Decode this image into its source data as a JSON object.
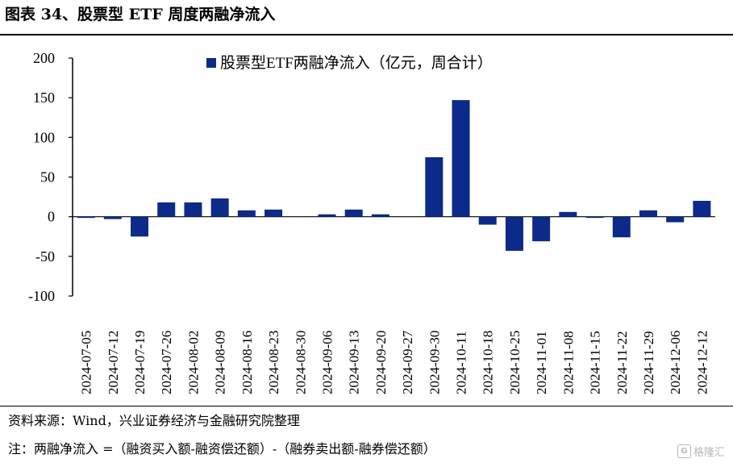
{
  "figure_title": "图表 34、股票型 ETF 周度两融净流入",
  "source_text": "资料来源：Wind，兴业证券经济与金融研究院整理",
  "note_text": "注：两融净流入 =（融资买入额-融资偿还额）-（融券卖出额-融券偿还额）",
  "watermark_text": "格隆汇",
  "colors": {
    "bar": "#0b2a8a"
  },
  "chart_data": {
    "type": "bar",
    "categories": [
      "2024-07-05",
      "2024-07-12",
      "2024-07-19",
      "2024-07-26",
      "2024-08-02",
      "2024-08-09",
      "2024-08-16",
      "2024-08-23",
      "2024-08-30",
      "2024-09-06",
      "2024-09-13",
      "2024-09-20",
      "2024-09-27",
      "2024-09-30",
      "2024-10-11",
      "2024-10-18",
      "2024-10-25",
      "2024-11-01",
      "2024-11-08",
      "2024-11-15",
      "2024-11-22",
      "2024-11-29",
      "2024-12-06",
      "2024-12-12"
    ],
    "series": [
      {
        "name": "股票型ETF两融净流入（亿元，周合计）",
        "values": [
          -1,
          -3,
          -25,
          18,
          18,
          23,
          8,
          9,
          0,
          3,
          9,
          3,
          0,
          75,
          147,
          -10,
          -43,
          -31,
          6,
          -1,
          -26,
          8,
          -7,
          20
        ]
      }
    ],
    "ylim": [
      -100,
      200
    ],
    "yticks": [
      -100,
      -50,
      0,
      50,
      100,
      150,
      200
    ],
    "legend_position": "top-center",
    "grid": false
  }
}
